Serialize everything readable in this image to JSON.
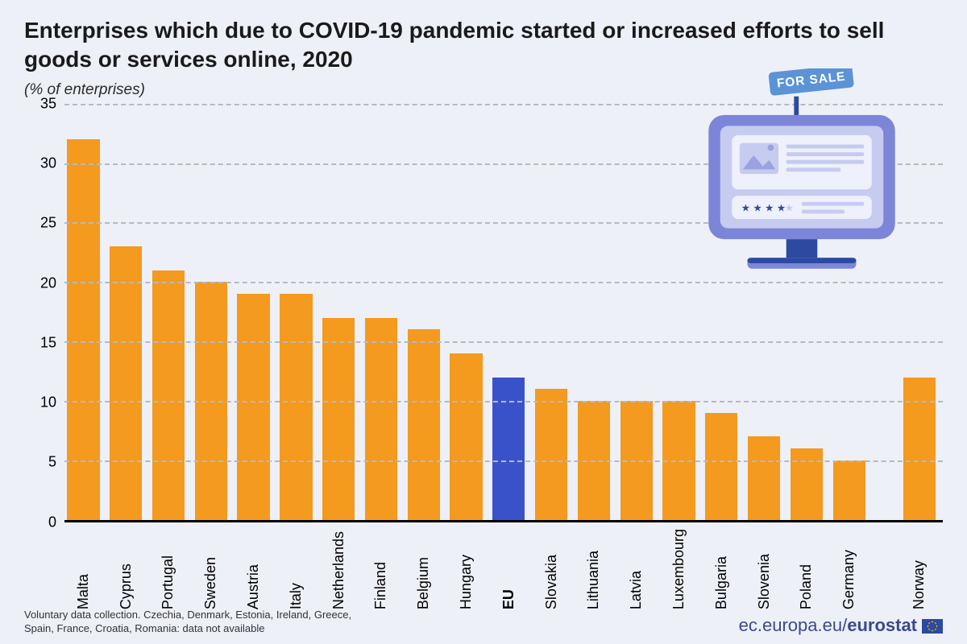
{
  "title": "Enterprises which due to COVID-19 pandemic started or increased efforts to sell goods or services online, 2020",
  "subtitle": "(% of enterprises)",
  "footnote": "Voluntary data collection. Czechia, Denmark, Estonia, Ireland, Greece, Spain, France, Croatia, Romania: data not available",
  "source_prefix": "ec.europa.eu/",
  "source_brand": "eurostat",
  "sign_label": "FOR SALE",
  "chart": {
    "type": "bar",
    "ylim": [
      0,
      35
    ],
    "ytick_step": 5,
    "grid_color": "#b5b9c7",
    "background_color": "#eef0f8",
    "axis_fontsize": 18,
    "title_fontsize": 28,
    "bar_color": "#f39a1f",
    "highlight_color": "#3a52c9",
    "categories": [
      "Malta",
      "Cyprus",
      "Portugal",
      "Sweden",
      "Austria",
      "Italy",
      "Netherlands",
      "Finland",
      "Belgium",
      "Hungary",
      "EU",
      "Slovakia",
      "Lithuania",
      "Latvia",
      "Luxembourg",
      "Bulgaria",
      "Slovenia",
      "Poland",
      "Germany",
      "",
      "Norway"
    ],
    "values": [
      32,
      23,
      21,
      20,
      19,
      19,
      17,
      17,
      16,
      14,
      12,
      11,
      10,
      10,
      10,
      9,
      7,
      6,
      5,
      null,
      12
    ],
    "highlighted": [
      false,
      false,
      false,
      false,
      false,
      false,
      false,
      false,
      false,
      false,
      true,
      false,
      false,
      false,
      false,
      false,
      false,
      false,
      false,
      false,
      false
    ],
    "bold_label": [
      false,
      false,
      false,
      false,
      false,
      false,
      false,
      false,
      false,
      false,
      true,
      false,
      false,
      false,
      false,
      false,
      false,
      false,
      false,
      false,
      false
    ]
  }
}
